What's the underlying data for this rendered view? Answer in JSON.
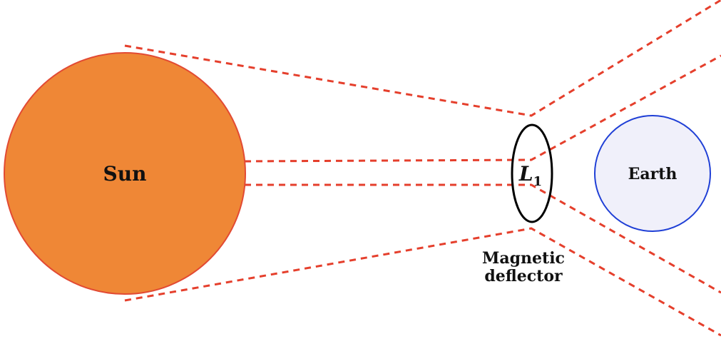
{
  "labels": {
    "sun": "Sun",
    "earth": "Earth",
    "l1_main": "L",
    "l1_sub": "1",
    "deflector_line1": "Magnetic",
    "deflector_line2": "deflector"
  },
  "colors": {
    "sun_fill": "#ef8736",
    "sun_stroke": "#e24a33",
    "earth_fill": "#f0f0fa",
    "earth_stroke": "#1f3fd6",
    "wind_lines": "#e53f2c",
    "deflector_stroke": "#000000",
    "text": "#111111"
  }
}
